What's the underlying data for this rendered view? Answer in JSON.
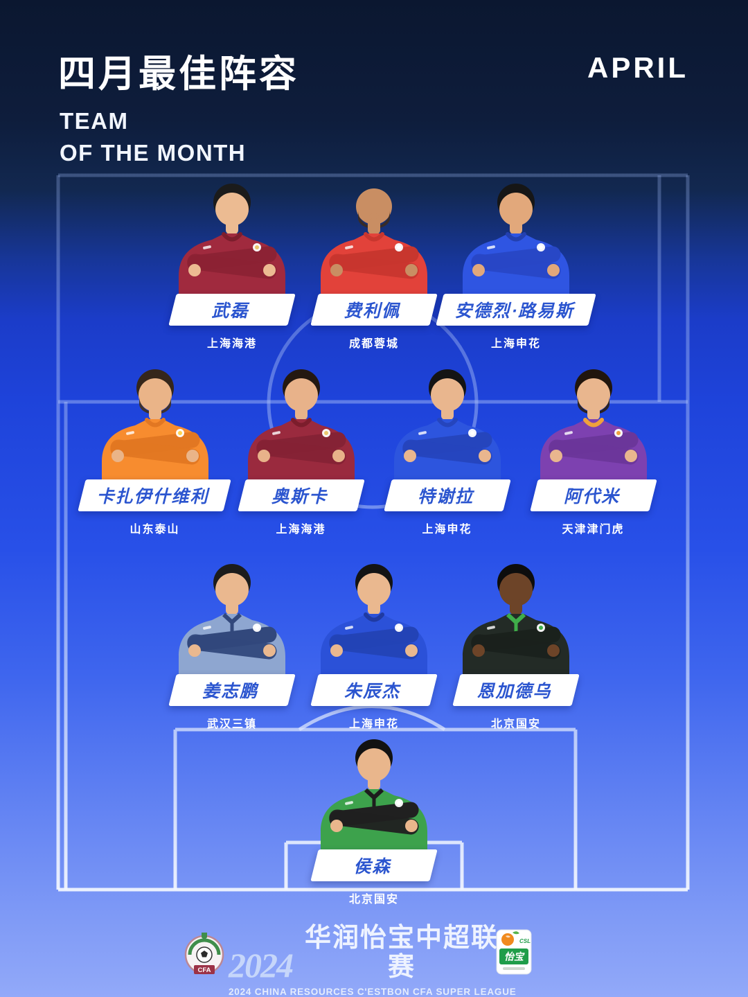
{
  "header": {
    "title_cn": "四月最佳阵容",
    "subtitle_line1": "TEAM",
    "subtitle_line2": "OF THE MONTH",
    "month": "APRIL"
  },
  "rows": [
    {
      "players": [
        {
          "name": "武磊",
          "club": "上海海港",
          "style": {
            "jersey": "#a02a3e",
            "arm": "#8c2234",
            "skin": "#ecbb92",
            "hair": "#1b1b1b",
            "beard": null,
            "collar": "#7c1d2c",
            "zip": false,
            "accent": "#e9c76d"
          }
        },
        {
          "name": "费利佩",
          "club": "成都蓉城",
          "style": {
            "jersey": "#e2423a",
            "arm": "#c8362e",
            "skin": "#c98e63",
            "hair": null,
            "beard": "#3c2b21",
            "collar": "#c8362e",
            "zip": false,
            "accent": "#ffffff"
          }
        },
        {
          "name": "安德烈·路易斯",
          "club": "上海申花",
          "style": {
            "jersey": "#2f55e2",
            "arm": "#2847c6",
            "skin": "#e2a87b",
            "hair": "#161616",
            "beard": null,
            "collar": "#2340b0",
            "zip": false,
            "accent": "#ffffff"
          }
        }
      ]
    },
    {
      "players": [
        {
          "name": "卡扎伊什维利",
          "club": "山东泰山",
          "style": {
            "jersey": "#f78c2f",
            "arm": "#e27722",
            "skin": "#eab488",
            "hair": "#35261a",
            "beard": "#41301f",
            "collar": "#e27722",
            "zip": false,
            "accent": "#ffd24d"
          }
        },
        {
          "name": "奥斯卡",
          "club": "上海海港",
          "style": {
            "jersey": "#9a2a3e",
            "arm": "#852235",
            "skin": "#e8b28a",
            "hair": "#241811",
            "beard": null,
            "collar": "#7c1d2c",
            "zip": false,
            "accent": "#e9c76d"
          }
        },
        {
          "name": "特谢拉",
          "club": "上海申花",
          "style": {
            "jersey": "#2d55de",
            "arm": "#2545bd",
            "skin": "#e9b68e",
            "hair": "#141414",
            "beard": null,
            "collar": "#2545bd",
            "zip": false,
            "accent": "#ffffff"
          }
        },
        {
          "name": "阿代米",
          "club": "天津津门虎",
          "style": {
            "jersey": "#7d41b0",
            "arm": "#6b369a",
            "skin": "#e9b68e",
            "hair": "#20150d",
            "beard": "#2d2013",
            "collar": "#f0a13c",
            "zip": false,
            "accent": "#f0a13c"
          }
        }
      ]
    },
    {
      "players": [
        {
          "name": "姜志鹏",
          "club": "武汉三镇",
          "style": {
            "jersey": "#8ea6d0",
            "arm": "#32487c",
            "skin": "#eab88f",
            "hair": "#1c1c1c",
            "beard": null,
            "collar": "#32487c",
            "zip": true,
            "accent": "#ffffff"
          }
        },
        {
          "name": "朱辰杰",
          "club": "上海申花",
          "style": {
            "jersey": "#2b51d8",
            "arm": "#2343b6",
            "skin": "#eab88f",
            "hair": "#141414",
            "beard": null,
            "collar": "#1f3aa2",
            "zip": false,
            "accent": "#ffffff"
          }
        },
        {
          "name": "恩加德乌",
          "club": "北京国安",
          "style": {
            "jersey": "#232b26",
            "arm": "#1a211c",
            "skin": "#6d4428",
            "hair": "#0d0d0d",
            "beard": null,
            "collar": "#3fae4a",
            "zip": true,
            "accent": "#3fae4a"
          }
        }
      ]
    },
    {
      "players": [
        {
          "name": "侯森",
          "club": "北京国安",
          "style": {
            "jersey": "#3da24c",
            "arm": "#202020",
            "skin": "#e9b68c",
            "hair": "#121212",
            "beard": null,
            "collar": "#1d1d1d",
            "zip": true,
            "accent": "#ffffff"
          }
        }
      ]
    }
  ],
  "footer": {
    "year": "2024",
    "league_cn": "华润怡宝中超联赛",
    "league_en": "2024 CHINA RESOURCES C'ESTBON CFA SUPER LEAGUE",
    "cfa_label": "CFA",
    "csl_label": "CSL",
    "csl_cn": "怡宝"
  },
  "colors": {
    "plate_text": "#2b55cf",
    "pitch_line": "#dfe9fc",
    "bg_top": "#0b1730",
    "bg_mid": "#1e43da",
    "bg_bottom": "#92a9f9"
  }
}
